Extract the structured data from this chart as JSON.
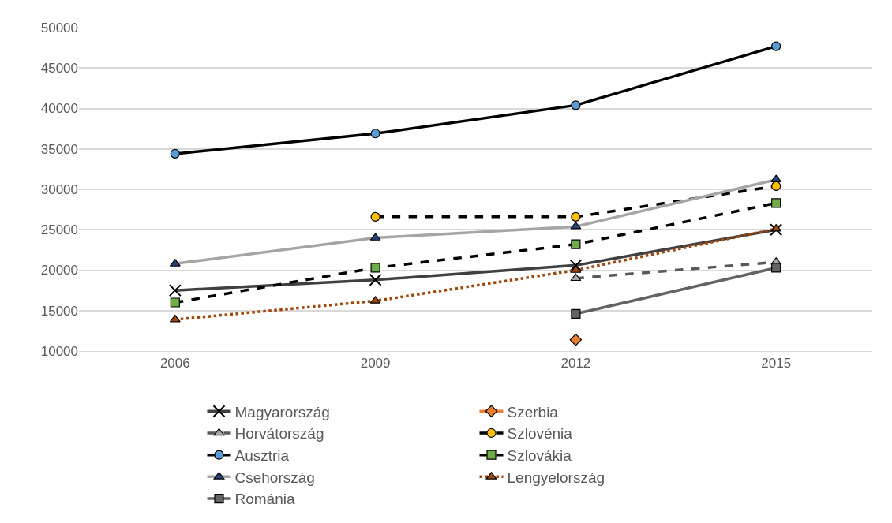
{
  "chart_data": {
    "type": "line",
    "categories": [
      "2006",
      "2009",
      "2012",
      "2015"
    ],
    "ylim": [
      10000,
      50000
    ],
    "yticks": [
      10000,
      15000,
      20000,
      25000,
      30000,
      35000,
      40000,
      45000,
      50000
    ],
    "grid": "y",
    "legend": "bottom",
    "series": [
      {
        "name": "Magyarország",
        "color": "#404040",
        "colors": [
          "#000000",
          "#000000",
          "#000000",
          "#000000"
        ],
        "marker": "cross",
        "line_style": "solid",
        "values": [
          17500,
          18800,
          20600,
          25000
        ]
      },
      {
        "name": "Szerbia",
        "color": "#ed7d31",
        "colors": [
          "#ed7d31",
          "#ed7d31",
          "#ed7d31",
          "#ed7d31"
        ],
        "marker": "diamond",
        "line_style": "solid",
        "values": [
          null,
          null,
          11400,
          null
        ]
      },
      {
        "name": "Horvátország",
        "color": "#595959",
        "colors": [
          "#a5a5a5",
          "#a5a5a5",
          "#a5a5a5",
          "#a5a5a5"
        ],
        "marker": "triangle",
        "line_style": "dashed",
        "values": [
          null,
          null,
          19000,
          21000
        ]
      },
      {
        "name": "Szlovénia",
        "color": "#000000",
        "colors": [
          "#ffc000",
          "#ffc000",
          "#ffc000",
          "#ffc000"
        ],
        "marker": "circle",
        "line_style": "dashed",
        "values": [
          null,
          26600,
          26600,
          30400
        ]
      },
      {
        "name": "Ausztria",
        "color": "#000000",
        "colors": [
          "#5b9bd5",
          "#5b9bd5",
          "#5b9bd5",
          "#5b9bd5"
        ],
        "marker": "circle",
        "line_style": "solid",
        "values": [
          34400,
          36900,
          40400,
          47700
        ]
      },
      {
        "name": "Szlovákia",
        "color": "#000000",
        "colors": [
          "#70ad47",
          "#70ad47",
          "#70ad47",
          "#70ad47"
        ],
        "marker": "square",
        "line_style": "dashed",
        "values": [
          16000,
          20300,
          23200,
          28300
        ]
      },
      {
        "name": "Csehország",
        "color": "#a5a5a5",
        "colors": [
          "#264478",
          "#264478",
          "#264478",
          "#264478"
        ],
        "marker": "triangle",
        "line_style": "solid",
        "values": [
          20800,
          24000,
          25400,
          31200
        ]
      },
      {
        "name": "Lengyelország",
        "color": "#9e480e",
        "colors": [
          "#9e480e",
          "#9e480e",
          "#9e480e",
          "#9e480e"
        ],
        "marker": "triangle",
        "line_style": "dotted",
        "values": [
          13900,
          16200,
          20000,
          25100
        ]
      },
      {
        "name": "Románia",
        "color": "#636363",
        "colors": [
          "#636363",
          "#636363",
          "#636363",
          "#636363"
        ],
        "marker": "square",
        "line_style": "solid",
        "values": [
          null,
          null,
          14600,
          20300
        ]
      }
    ]
  }
}
